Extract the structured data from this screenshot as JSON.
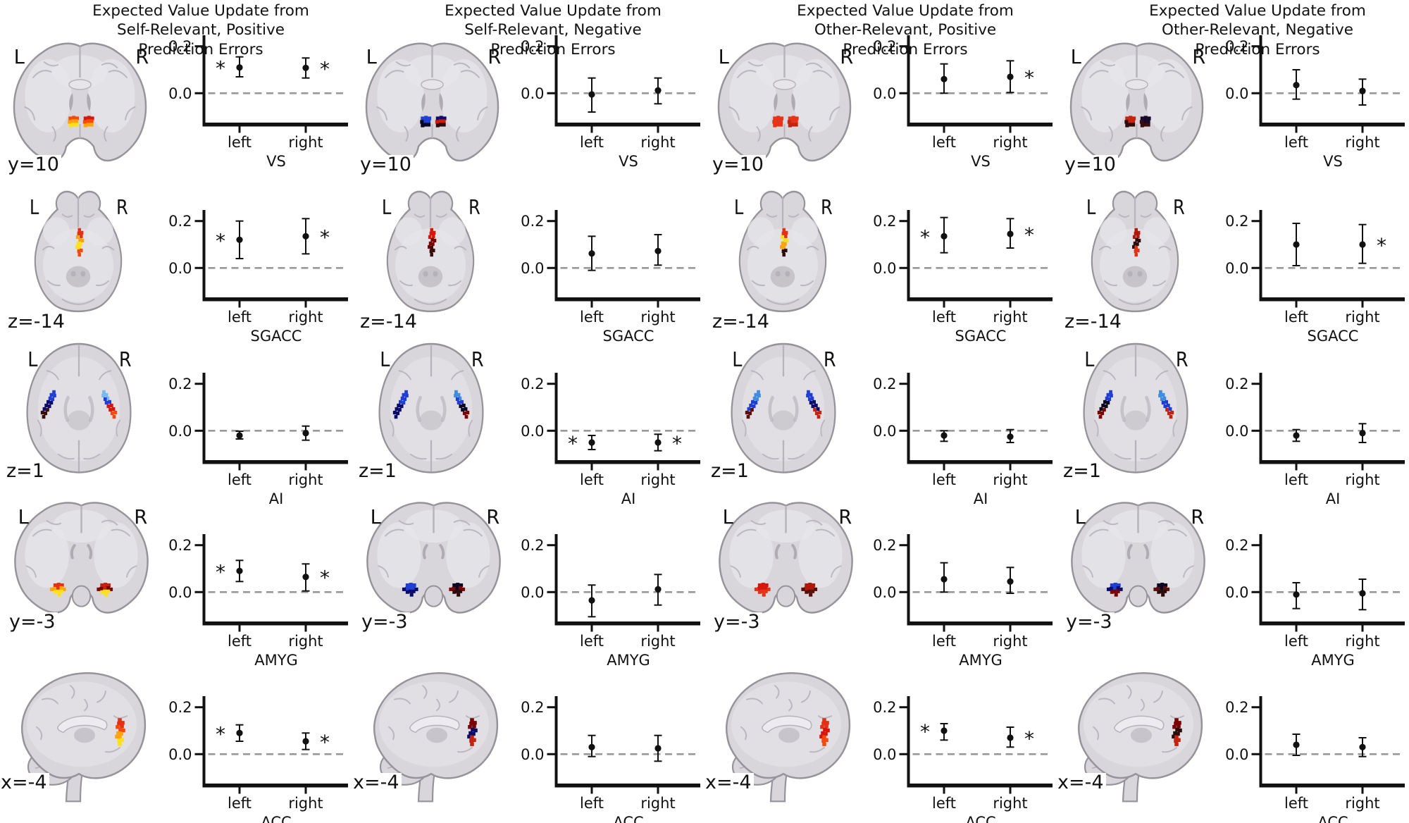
{
  "figure": {
    "sig_marker": "*",
    "hemisphere_labels": {
      "left": "L",
      "right": "R"
    },
    "column_titles": [
      "Expected Value Update from\nSelf-Relevant, Positive\nPrediction Errors",
      "Expected Value Update from\nSelf-Relevant, Negative\nPrediction Errors",
      "Expected Value Update from\nOther-Relevant, Positive\nPrediction Errors",
      "Expected Value Update from\nOther-Relevant, Negative\nPrediction Errors"
    ],
    "rows": [
      {
        "region": "VS",
        "slice_label": "y=10",
        "view": "coronal_vs"
      },
      {
        "region": "SGACC",
        "slice_label": "z=-14",
        "view": "axial_sgacc"
      },
      {
        "region": "AI",
        "slice_label": "z=1",
        "view": "axial_ai"
      },
      {
        "region": "AMYG",
        "slice_label": "y=-3",
        "view": "coronal_amyg"
      },
      {
        "region": "ACC",
        "slice_label": "x=-4",
        "view": "sagittal_acc"
      }
    ],
    "colors": {
      "axis": "#111111",
      "zero_line": "#999999",
      "point": "#111111",
      "brain_fill": "#d8d6db",
      "brain_inner": "#e7e5e9",
      "brain_outline": "#96949a",
      "brain_sulci": "#b6b4ba",
      "brain_deep": "#aeacb2"
    },
    "brains": [
      {
        "view": "coronal_vs",
        "activation": {
          "left": [
            "#f4490c",
            "#fca40a",
            "#fee11a"
          ],
          "right": [
            "#d7160b",
            "#f4490c",
            "#fca40a"
          ]
        }
      },
      {
        "view": "coronal_vs",
        "activation": {
          "left": [
            "#1f3fd4",
            "#0a0520"
          ],
          "right": [
            "#0b0b6b",
            "#d7160b",
            "#2b0b0b"
          ]
        }
      },
      {
        "view": "coronal_vs",
        "activation": {
          "left": [
            "#e63217",
            "#e63217"
          ],
          "right": [
            "#e63217",
            "#c42310"
          ]
        }
      },
      {
        "view": "coronal_vs",
        "activation": {
          "left": [
            "#c42310",
            "#2b0b0b"
          ],
          "right": [
            "#17092b",
            "#3a0d0d"
          ]
        }
      },
      {
        "view": "axial_sgacc",
        "activation": {
          "mid": [
            "#e33114",
            "#fca40a",
            "#fee11a",
            "#f4490c"
          ]
        }
      },
      {
        "view": "axial_sgacc",
        "activation": {
          "mid": [
            "#d7160b",
            "#7a0403",
            "#3a0d0d"
          ]
        }
      },
      {
        "view": "axial_sgacc",
        "activation": {
          "mid": [
            "#e33114",
            "#fee11a",
            "#fca40a",
            "#2b0b0b"
          ]
        }
      },
      {
        "view": "axial_sgacc",
        "activation": {
          "mid": [
            "#b01708",
            "#2b0b0b",
            "#e33114"
          ]
        }
      },
      {
        "view": "axial_ai",
        "activation": {
          "left": [
            "#1f3fd4",
            "#0b0b6b",
            "#3a0d0d"
          ],
          "right": [
            "#7ab8f0",
            "#1f3fd4",
            "#d7160b",
            "#f4490c"
          ]
        }
      },
      {
        "view": "axial_ai",
        "activation": {
          "left": [
            "#1f3fd4",
            "#0b0b6b"
          ],
          "right": [
            "#3f8ce0",
            "#1f3fd4",
            "#0a0520",
            "#7a0403"
          ]
        }
      },
      {
        "view": "axial_ai",
        "activation": {
          "left": [
            "#3f8ce0",
            "#1f3fd4",
            "#5a0f08"
          ],
          "right": [
            "#1f3fd4",
            "#0b0b6b",
            "#c42310"
          ]
        }
      },
      {
        "view": "axial_ai",
        "activation": {
          "left": [
            "#1f3fd4",
            "#0a0520",
            "#7a0403"
          ],
          "right": [
            "#3f8ce0",
            "#1f3fd4",
            "#c42310"
          ]
        }
      },
      {
        "view": "coronal_amyg",
        "activation": {
          "left": [
            "#e33114",
            "#fca40a",
            "#fee11a"
          ],
          "right": [
            "#c42310",
            "#7a0403",
            "#fee11a"
          ]
        }
      },
      {
        "view": "coronal_amyg",
        "activation": {
          "left": [
            "#1f3fd4",
            "#0b0b6b"
          ],
          "right": [
            "#0a0520",
            "#7a0403",
            "#2b0b0b"
          ]
        }
      },
      {
        "view": "coronal_amyg",
        "activation": {
          "left": [
            "#d7160b",
            "#e33114"
          ],
          "right": [
            "#b01708",
            "#5a0f08"
          ]
        }
      },
      {
        "view": "coronal_amyg",
        "activation": {
          "left": [
            "#1f3fd4",
            "#0b0b6b",
            "#7a0403"
          ],
          "right": [
            "#0a0520",
            "#5a0f08",
            "#2b0b0b"
          ]
        }
      },
      {
        "view": "sagittal_acc",
        "activation": {
          "mid": [
            "#e33114",
            "#f4490c",
            "#fca40a",
            "#fee11a"
          ]
        }
      },
      {
        "view": "sagittal_acc",
        "activation": {
          "mid": [
            "#7a0403",
            "#0b0b6b",
            "#c42310"
          ]
        }
      },
      {
        "view": "sagittal_acc",
        "activation": {
          "mid": [
            "#e33114",
            "#d7160b",
            "#f4490c"
          ]
        }
      },
      {
        "view": "sagittal_acc",
        "activation": {
          "mid": [
            "#7a0403",
            "#2b0b0b",
            "#c42310"
          ]
        }
      }
    ]
  },
  "chart_data": [
    {
      "type": "scatter",
      "region": "VS",
      "condition": "Self-Relevant, Positive Prediction Errors",
      "categories": [
        "left",
        "right"
      ],
      "values": [
        0.11,
        0.108
      ],
      "err_lo": [
        0.07,
        0.065
      ],
      "err_hi": [
        0.155,
        0.15
      ],
      "significant": [
        true,
        true
      ],
      "yticks": [
        0.0,
        0.2
      ],
      "ytick_labels": [
        "0.0",
        "0.2"
      ],
      "ylim": [
        -0.125,
        0.235
      ],
      "xlabel": "VS",
      "zero_line": true
    },
    {
      "type": "scatter",
      "region": "VS",
      "condition": "Self-Relevant, Negative Prediction Errors",
      "categories": [
        "left",
        "right"
      ],
      "values": [
        -0.005,
        0.012
      ],
      "err_lo": [
        -0.08,
        -0.045
      ],
      "err_hi": [
        0.065,
        0.065
      ],
      "significant": [
        false,
        false
      ],
      "yticks": [
        0.0,
        0.2
      ],
      "ytick_labels": [
        "0.0",
        "0.2"
      ],
      "ylim": [
        -0.125,
        0.235
      ],
      "xlabel": "VS",
      "zero_line": true
    },
    {
      "type": "scatter",
      "region": "VS",
      "condition": "Other-Relevant, Positive Prediction Errors",
      "categories": [
        "left",
        "right"
      ],
      "values": [
        0.06,
        0.07
      ],
      "err_lo": [
        0.0,
        0.003
      ],
      "err_hi": [
        0.125,
        0.138
      ],
      "significant": [
        false,
        true
      ],
      "yticks": [
        0.0,
        0.2
      ],
      "ytick_labels": [
        "0.0",
        "0.2"
      ],
      "ylim": [
        -0.125,
        0.235
      ],
      "xlabel": "VS",
      "zero_line": true
    },
    {
      "type": "scatter",
      "region": "VS",
      "condition": "Other-Relevant, Negative Prediction Errors",
      "categories": [
        "left",
        "right"
      ],
      "values": [
        0.035,
        0.01
      ],
      "err_lo": [
        -0.025,
        -0.05
      ],
      "err_hi": [
        0.1,
        0.06
      ],
      "significant": [
        false,
        false
      ],
      "yticks": [
        0.0,
        0.2
      ],
      "ytick_labels": [
        "0.0",
        "0.2"
      ],
      "ylim": [
        -0.125,
        0.235
      ],
      "xlabel": "VS",
      "zero_line": true
    },
    {
      "type": "scatter",
      "region": "SGACC",
      "condition": "Self-Relevant, Positive Prediction Errors",
      "categories": [
        "left",
        "right"
      ],
      "values": [
        0.12,
        0.135
      ],
      "err_lo": [
        0.04,
        0.06
      ],
      "err_hi": [
        0.2,
        0.21
      ],
      "significant": [
        true,
        true
      ],
      "yticks": [
        0.0,
        0.2
      ],
      "ytick_labels": [
        "0.0",
        "0.2"
      ],
      "ylim": [
        -0.125,
        0.235
      ],
      "xlabel": "SGACC",
      "zero_line": true
    },
    {
      "type": "scatter",
      "region": "SGACC",
      "condition": "Self-Relevant, Negative Prediction Errors",
      "categories": [
        "left",
        "right"
      ],
      "values": [
        0.062,
        0.072
      ],
      "err_lo": [
        -0.01,
        0.012
      ],
      "err_hi": [
        0.135,
        0.142
      ],
      "significant": [
        false,
        false
      ],
      "yticks": [
        0.0,
        0.2
      ],
      "ytick_labels": [
        "0.0",
        "0.2"
      ],
      "ylim": [
        -0.125,
        0.235
      ],
      "xlabel": "SGACC",
      "zero_line": true
    },
    {
      "type": "scatter",
      "region": "SGACC",
      "condition": "Other-Relevant, Positive Prediction Errors",
      "categories": [
        "left",
        "right"
      ],
      "values": [
        0.135,
        0.145
      ],
      "err_lo": [
        0.065,
        0.085
      ],
      "err_hi": [
        0.215,
        0.21
      ],
      "significant": [
        true,
        true
      ],
      "yticks": [
        0.0,
        0.2
      ],
      "ytick_labels": [
        "0.0",
        "0.2"
      ],
      "ylim": [
        -0.125,
        0.235
      ],
      "xlabel": "SGACC",
      "zero_line": true
    },
    {
      "type": "scatter",
      "region": "SGACC",
      "condition": "Other-Relevant, Negative Prediction Errors",
      "categories": [
        "left",
        "right"
      ],
      "values": [
        0.1,
        0.1
      ],
      "err_lo": [
        0.01,
        0.02
      ],
      "err_hi": [
        0.19,
        0.185
      ],
      "significant": [
        false,
        true
      ],
      "yticks": [
        0.0,
        0.2
      ],
      "ytick_labels": [
        "0.0",
        "0.2"
      ],
      "ylim": [
        -0.125,
        0.235
      ],
      "xlabel": "SGACC",
      "zero_line": true
    },
    {
      "type": "scatter",
      "region": "AI",
      "condition": "Self-Relevant, Positive Prediction Errors",
      "categories": [
        "left",
        "right"
      ],
      "values": [
        -0.02,
        -0.01
      ],
      "err_lo": [
        -0.035,
        -0.04
      ],
      "err_hi": [
        -0.002,
        0.02
      ],
      "significant": [
        false,
        false
      ],
      "yticks": [
        0.0,
        0.2
      ],
      "ytick_labels": [
        "0.0",
        "0.2"
      ],
      "ylim": [
        -0.125,
        0.235
      ],
      "xlabel": "AI",
      "zero_line": true
    },
    {
      "type": "scatter",
      "region": "AI",
      "condition": "Self-Relevant, Negative Prediction Errors",
      "categories": [
        "left",
        "right"
      ],
      "values": [
        -0.05,
        -0.05
      ],
      "err_lo": [
        -0.08,
        -0.085
      ],
      "err_hi": [
        -0.02,
        -0.015
      ],
      "significant": [
        true,
        true
      ],
      "yticks": [
        0.0,
        0.2
      ],
      "ytick_labels": [
        "0.0",
        "0.2"
      ],
      "ylim": [
        -0.125,
        0.235
      ],
      "xlabel": "AI",
      "zero_line": true
    },
    {
      "type": "scatter",
      "region": "AI",
      "condition": "Other-Relevant, Positive Prediction Errors",
      "categories": [
        "left",
        "right"
      ],
      "values": [
        -0.02,
        -0.025
      ],
      "err_lo": [
        -0.045,
        -0.05
      ],
      "err_hi": [
        0.0,
        0.005
      ],
      "significant": [
        false,
        false
      ],
      "yticks": [
        0.0,
        0.2
      ],
      "ytick_labels": [
        "0.0",
        "0.2"
      ],
      "ylim": [
        -0.125,
        0.235
      ],
      "xlabel": "AI",
      "zero_line": true
    },
    {
      "type": "scatter",
      "region": "AI",
      "condition": "Other-Relevant, Negative Prediction Errors",
      "categories": [
        "left",
        "right"
      ],
      "values": [
        -0.02,
        -0.01
      ],
      "err_lo": [
        -0.045,
        -0.05
      ],
      "err_hi": [
        0.005,
        0.03
      ],
      "significant": [
        false,
        false
      ],
      "yticks": [
        0.0,
        0.2
      ],
      "ytick_labels": [
        "0.0",
        "0.2"
      ],
      "ylim": [
        -0.125,
        0.235
      ],
      "xlabel": "AI",
      "zero_line": true
    },
    {
      "type": "scatter",
      "region": "AMYG",
      "condition": "Self-Relevant, Positive Prediction Errors",
      "categories": [
        "left",
        "right"
      ],
      "values": [
        0.09,
        0.065
      ],
      "err_lo": [
        0.045,
        0.005
      ],
      "err_hi": [
        0.135,
        0.12
      ],
      "significant": [
        true,
        true
      ],
      "yticks": [
        0.0,
        0.2
      ],
      "ytick_labels": [
        "0.0",
        "0.2"
      ],
      "ylim": [
        -0.125,
        0.235
      ],
      "xlabel": "AMYG",
      "zero_line": true
    },
    {
      "type": "scatter",
      "region": "AMYG",
      "condition": "Self-Relevant, Negative Prediction Errors",
      "categories": [
        "left",
        "right"
      ],
      "values": [
        -0.035,
        0.012
      ],
      "err_lo": [
        -0.105,
        -0.055
      ],
      "err_hi": [
        0.03,
        0.075
      ],
      "significant": [
        false,
        false
      ],
      "yticks": [
        0.0,
        0.2
      ],
      "ytick_labels": [
        "0.0",
        "0.2"
      ],
      "ylim": [
        -0.125,
        0.235
      ],
      "xlabel": "AMYG",
      "zero_line": true
    },
    {
      "type": "scatter",
      "region": "AMYG",
      "condition": "Other-Relevant, Positive Prediction Errors",
      "categories": [
        "left",
        "right"
      ],
      "values": [
        0.055,
        0.045
      ],
      "err_lo": [
        0.0,
        -0.005
      ],
      "err_hi": [
        0.125,
        0.105
      ],
      "significant": [
        false,
        false
      ],
      "yticks": [
        0.0,
        0.2
      ],
      "ytick_labels": [
        "0.0",
        "0.2"
      ],
      "ylim": [
        -0.125,
        0.235
      ],
      "xlabel": "AMYG",
      "zero_line": true
    },
    {
      "type": "scatter",
      "region": "AMYG",
      "condition": "Other-Relevant, Negative Prediction Errors",
      "categories": [
        "left",
        "right"
      ],
      "values": [
        -0.01,
        -0.005
      ],
      "err_lo": [
        -0.07,
        -0.075
      ],
      "err_hi": [
        0.04,
        0.055
      ],
      "significant": [
        false,
        false
      ],
      "yticks": [
        0.0,
        0.2
      ],
      "ytick_labels": [
        "0.0",
        "0.2"
      ],
      "ylim": [
        -0.125,
        0.235
      ],
      "xlabel": "AMYG",
      "zero_line": true
    },
    {
      "type": "scatter",
      "region": "ACC",
      "condition": "Self-Relevant, Positive Prediction Errors",
      "categories": [
        "left",
        "right"
      ],
      "values": [
        0.09,
        0.055
      ],
      "err_lo": [
        0.055,
        0.02
      ],
      "err_hi": [
        0.125,
        0.09
      ],
      "significant": [
        true,
        true
      ],
      "yticks": [
        0.0,
        0.2
      ],
      "ytick_labels": [
        "0.0",
        "0.2"
      ],
      "ylim": [
        -0.125,
        0.235
      ],
      "xlabel": "ACC",
      "zero_line": true
    },
    {
      "type": "scatter",
      "region": "ACC",
      "condition": "Self-Relevant, Negative Prediction Errors",
      "categories": [
        "left",
        "right"
      ],
      "values": [
        0.03,
        0.025
      ],
      "err_lo": [
        -0.01,
        -0.03
      ],
      "err_hi": [
        0.08,
        0.08
      ],
      "significant": [
        false,
        false
      ],
      "yticks": [
        0.0,
        0.2
      ],
      "ytick_labels": [
        "0.0",
        "0.2"
      ],
      "ylim": [
        -0.125,
        0.235
      ],
      "xlabel": "ACC",
      "zero_line": true
    },
    {
      "type": "scatter",
      "region": "ACC",
      "condition": "Other-Relevant, Positive Prediction Errors",
      "categories": [
        "left",
        "right"
      ],
      "values": [
        0.1,
        0.07
      ],
      "err_lo": [
        0.06,
        0.03
      ],
      "err_hi": [
        0.13,
        0.115
      ],
      "significant": [
        true,
        true
      ],
      "yticks": [
        0.0,
        0.2
      ],
      "ytick_labels": [
        "0.0",
        "0.2"
      ],
      "ylim": [
        -0.125,
        0.235
      ],
      "xlabel": "ACC",
      "zero_line": true
    },
    {
      "type": "scatter",
      "region": "ACC",
      "condition": "Other-Relevant, Negative Prediction Errors",
      "categories": [
        "left",
        "right"
      ],
      "values": [
        0.04,
        0.03
      ],
      "err_lo": [
        -0.005,
        -0.01
      ],
      "err_hi": [
        0.085,
        0.07
      ],
      "significant": [
        false,
        false
      ],
      "yticks": [
        0.0,
        0.2
      ],
      "ytick_labels": [
        "0.0",
        "0.2"
      ],
      "ylim": [
        -0.125,
        0.235
      ],
      "xlabel": "ACC",
      "zero_line": true
    }
  ]
}
